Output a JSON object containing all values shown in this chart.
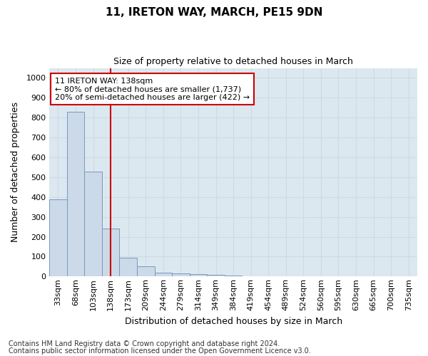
{
  "title": "11, IRETON WAY, MARCH, PE15 9DN",
  "subtitle": "Size of property relative to detached houses in March",
  "xlabel": "Distribution of detached houses by size in March",
  "ylabel": "Number of detached properties",
  "categories": [
    "33sqm",
    "68sqm",
    "103sqm",
    "138sqm",
    "173sqm",
    "209sqm",
    "244sqm",
    "279sqm",
    "314sqm",
    "349sqm",
    "384sqm",
    "419sqm",
    "454sqm",
    "489sqm",
    "524sqm",
    "560sqm",
    "595sqm",
    "630sqm",
    "665sqm",
    "700sqm",
    "735sqm"
  ],
  "bar_values": [
    390,
    830,
    530,
    240,
    95,
    52,
    20,
    15,
    10,
    8,
    5,
    0,
    0,
    0,
    0,
    0,
    0,
    0,
    0,
    0,
    0
  ],
  "bar_color": "#ccd9e8",
  "bar_edge_color": "#7799bb",
  "vline_x_index": 3,
  "vline_color": "#cc0000",
  "annotation_title": "11 IRETON WAY: 138sqm",
  "annotation_line1": "← 80% of detached houses are smaller (1,737)",
  "annotation_line2": "20% of semi-detached houses are larger (422) →",
  "annotation_box_edgecolor": "#cc0000",
  "ylim": [
    0,
    1050
  ],
  "yticks": [
    0,
    100,
    200,
    300,
    400,
    500,
    600,
    700,
    800,
    900,
    1000
  ],
  "grid_color": "#d0d8e8",
  "bg_color": "#dce8f0",
  "fig_facecolor": "#ffffff",
  "footnote1": "Contains HM Land Registry data © Crown copyright and database right 2024.",
  "footnote2": "Contains public sector information licensed under the Open Government Licence v3.0.",
  "title_fontsize": 11,
  "subtitle_fontsize": 9,
  "axis_label_fontsize": 9,
  "tick_fontsize": 8,
  "annotation_fontsize": 8,
  "footnote_fontsize": 7
}
